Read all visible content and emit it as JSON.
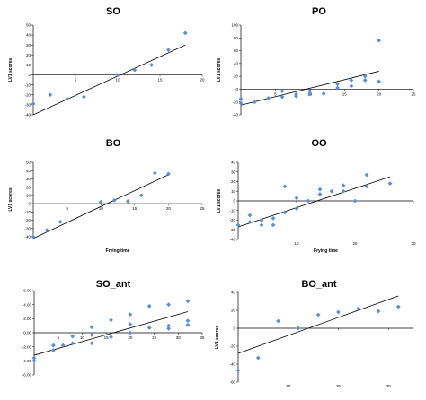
{
  "chart_data": [
    {
      "type": "scatter",
      "title": "SO",
      "xlabel": "",
      "ylabel": "LV1 scores",
      "xlim": [
        0,
        20
      ],
      "ylim": [
        -40,
        50
      ],
      "xticks": [
        5,
        10,
        15,
        20
      ],
      "yticks": [
        50,
        40,
        30,
        20,
        10,
        0,
        -10,
        -20,
        -30,
        -40
      ],
      "points": [
        [
          0,
          -29
        ],
        [
          2,
          -20
        ],
        [
          4,
          -24
        ],
        [
          6,
          -22
        ],
        [
          10,
          0
        ],
        [
          12,
          5
        ],
        [
          14,
          10
        ],
        [
          16,
          25
        ],
        [
          18,
          42
        ]
      ],
      "trend": [
        [
          0,
          -40
        ],
        [
          18,
          30
        ]
      ],
      "tick_labels_near_axis": true
    },
    {
      "type": "scatter",
      "title": "PO",
      "xlabel": "",
      "ylabel": "LV1 scores",
      "xlim": [
        0,
        25
      ],
      "ylim": [
        -40,
        100
      ],
      "xticks": [
        5,
        10,
        15,
        20,
        25
      ],
      "yticks": [
        100,
        80,
        60,
        40,
        20,
        0,
        -20,
        -40
      ],
      "points": [
        [
          0,
          -22
        ],
        [
          0,
          -15
        ],
        [
          2,
          -20
        ],
        [
          4,
          -14
        ],
        [
          6,
          -12
        ],
        [
          6,
          -3
        ],
        [
          8,
          -8
        ],
        [
          8,
          -11
        ],
        [
          10,
          -3
        ],
        [
          10,
          -8
        ],
        [
          12,
          -7
        ],
        [
          14,
          8
        ],
        [
          14,
          2
        ],
        [
          16,
          5
        ],
        [
          16,
          14
        ],
        [
          18,
          20
        ],
        [
          18,
          14
        ],
        [
          20,
          76
        ],
        [
          20,
          12
        ]
      ],
      "trend": [
        [
          0,
          -25
        ],
        [
          20,
          28
        ]
      ],
      "tick_labels_near_axis": true
    },
    {
      "type": "scatter",
      "title": "BO",
      "xlabel": "Frying time",
      "ylabel": "LV1 scores",
      "xlim": [
        0,
        25
      ],
      "ylim": [
        -40,
        50
      ],
      "xticks": [
        5,
        10,
        15,
        20,
        25
      ],
      "yticks": [
        50,
        40,
        30,
        20,
        10,
        0,
        -10,
        -20,
        -30,
        -40
      ],
      "points": [
        [
          0,
          -40
        ],
        [
          2,
          -32
        ],
        [
          4,
          -22
        ],
        [
          10,
          2
        ],
        [
          12,
          4
        ],
        [
          14,
          3
        ],
        [
          16,
          10
        ],
        [
          18,
          37
        ],
        [
          20,
          36
        ]
      ],
      "trend": [
        [
          0,
          -42
        ],
        [
          20,
          35
        ]
      ],
      "tick_labels_near_axis": true
    },
    {
      "type": "scatter",
      "title": "OO",
      "xlabel": "Frying time",
      "ylabel": "LV1 scores",
      "xlim": [
        0,
        30
      ],
      "ylim": [
        -40,
        40
      ],
      "xticks": [
        10,
        20,
        30
      ],
      "yticks": [
        40,
        30,
        20,
        10,
        0,
        -10,
        -20,
        -30,
        -40
      ],
      "points": [
        [
          0,
          -25
        ],
        [
          2,
          -22
        ],
        [
          2,
          -15
        ],
        [
          4,
          -20
        ],
        [
          4,
          -25
        ],
        [
          6,
          -25
        ],
        [
          6,
          -18
        ],
        [
          8,
          -12
        ],
        [
          8,
          15
        ],
        [
          10,
          -8
        ],
        [
          10,
          3
        ],
        [
          12,
          0
        ],
        [
          14,
          12
        ],
        [
          14,
          7
        ],
        [
          16,
          10
        ],
        [
          18,
          16
        ],
        [
          18,
          10
        ],
        [
          20,
          0
        ],
        [
          22,
          27
        ],
        [
          22,
          15
        ],
        [
          26,
          18
        ]
      ],
      "trend": [
        [
          0,
          -27
        ],
        [
          26,
          25
        ]
      ],
      "tick_labels_near_axis": false
    },
    {
      "type": "scatter",
      "title": "SO_ant",
      "xlabel": "",
      "ylabel": "",
      "xlim": [
        0,
        35
      ],
      "ylim": [
        -6,
        6
      ],
      "xticks": [
        5,
        10,
        15,
        20,
        25,
        30,
        35
      ],
      "yticks": [
        "6.00",
        "4.00",
        "2.00",
        "0.00",
        "-2.00",
        "-4.00",
        "-6.00"
      ],
      "points": [
        [
          0,
          -3.6
        ],
        [
          0,
          -4.0
        ],
        [
          4,
          -2.5
        ],
        [
          4,
          -1.8
        ],
        [
          6,
          -1.8
        ],
        [
          8,
          -1.5
        ],
        [
          8,
          -0.5
        ],
        [
          12,
          -1.5
        ],
        [
          12,
          0.8
        ],
        [
          12,
          -0.3
        ],
        [
          16,
          1.8
        ],
        [
          16,
          -0.6
        ],
        [
          20,
          2.6
        ],
        [
          20,
          0.0
        ],
        [
          20,
          1.2
        ],
        [
          24,
          3.8
        ],
        [
          24,
          0.7
        ],
        [
          28,
          4.0
        ],
        [
          28,
          1.0
        ],
        [
          28,
          0.6
        ],
        [
          32,
          4.5
        ],
        [
          32,
          1.7
        ],
        [
          32,
          1.1
        ]
      ],
      "trend": [
        [
          0,
          -3.2
        ],
        [
          32,
          3.0
        ]
      ],
      "tick_labels_near_axis": true
    },
    {
      "type": "scatter",
      "title": "BO_ant",
      "xlabel": "",
      "ylabel": "LV1 scores",
      "xlim": [
        0,
        35
      ],
      "ylim": [
        -60,
        40
      ],
      "xticks": [
        10,
        20,
        30
      ],
      "yticks": [
        40,
        20,
        0,
        -20,
        -40,
        -60
      ],
      "points": [
        [
          0,
          -47
        ],
        [
          4,
          -33
        ],
        [
          8,
          8
        ],
        [
          12,
          0
        ],
        [
          16,
          15
        ],
        [
          20,
          18
        ],
        [
          24,
          22
        ],
        [
          28,
          19
        ],
        [
          32,
          24
        ]
      ],
      "trend": [
        [
          0,
          -28
        ],
        [
          32,
          36
        ]
      ],
      "tick_labels_near_axis": false
    }
  ]
}
